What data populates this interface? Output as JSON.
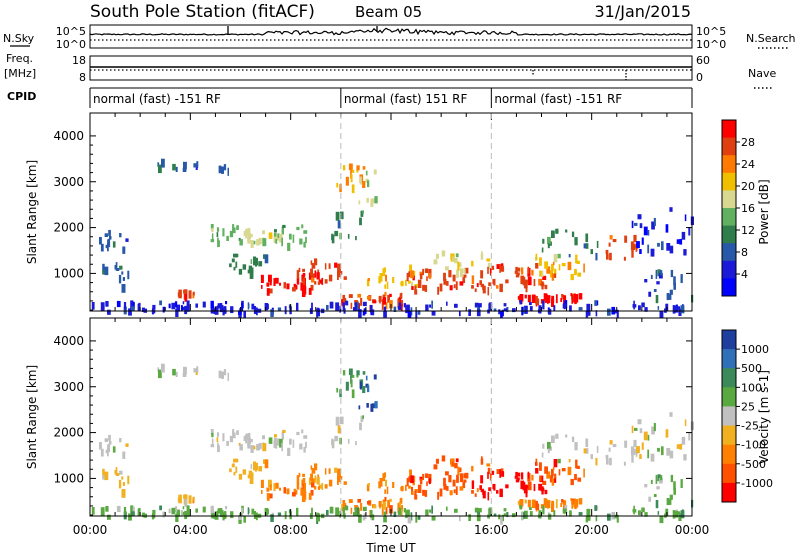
{
  "header": {
    "station": "South Pole Station (fitACF)",
    "beam": "Beam 05",
    "date": "31/Jan/2015"
  },
  "side_labels": {
    "nsky": "N.Sky",
    "nsearch": "N.Search",
    "freq": "Freq.",
    "freq_unit": "[MHz]",
    "nave": "Nave",
    "cpid": "CPID"
  },
  "noise_panel": {
    "left_ticks": [
      "10^5",
      "10^0"
    ],
    "right_ticks": [
      "10^5",
      "10^0"
    ]
  },
  "freq_panel": {
    "left_ticks": [
      "18",
      "8"
    ],
    "right_ticks": [
      "60",
      "0"
    ]
  },
  "cpid_segments": [
    {
      "label": "normal (fast) -151 RF",
      "start_hour": 0,
      "end_hour": 10
    },
    {
      "label": "normal (fast) 151 RF",
      "start_hour": 10,
      "end_hour": 16
    },
    {
      "label": "normal (fast) -151 RF",
      "start_hour": 16,
      "end_hour": 24
    }
  ],
  "chart_data": [
    {
      "type": "heatmap",
      "panel": "power",
      "ylabel": "Slant Range [km]",
      "xlabel": "",
      "ylim": [
        180,
        4500
      ],
      "yticks": [
        1000,
        2000,
        3000,
        4000
      ],
      "colorbar_label": "Power [dB]",
      "colorbar_ticks": [
        "28",
        "24",
        "20",
        "16",
        "12",
        "8",
        "4"
      ],
      "colors": [
        "#ff0000",
        "#e04010",
        "#ff7a00",
        "#f0c000",
        "#d8d890",
        "#60b060",
        "#2e7d4a",
        "#2858a8",
        "#1a1ad8",
        "#0000ff"
      ]
    },
    {
      "type": "heatmap",
      "panel": "velocity",
      "ylabel": "Slant Range [km]",
      "xlabel": "Time UT",
      "ylim": [
        180,
        4500
      ],
      "yticks": [
        1000,
        2000,
        3000,
        4000
      ],
      "xticks": [
        "00:00",
        "04:00",
        "08:00",
        "12:00",
        "16:00",
        "20:00",
        "00:00"
      ],
      "colorbar_label": "Velocity [m s-1]",
      "colorbar_ticks": [
        "1000",
        "500",
        "100",
        "25",
        "-25",
        "-100",
        "-500",
        "-1000"
      ],
      "colors": [
        "#1f3f9f",
        "#3070b8",
        "#3c8a5a",
        "#5aa840",
        "#c0c0c0",
        "#f0b020",
        "#ff8000",
        "#ff5000",
        "#ff0000"
      ]
    }
  ]
}
